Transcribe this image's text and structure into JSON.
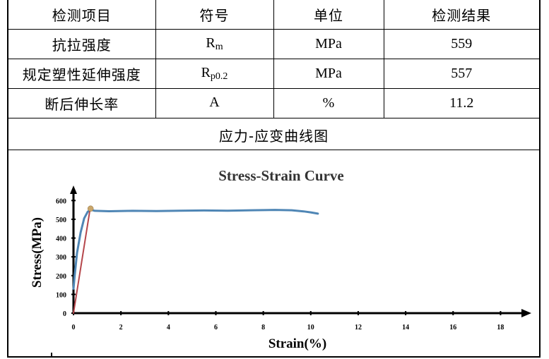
{
  "table": {
    "headers": [
      "检测项目",
      "符号",
      "单位",
      "检测结果"
    ],
    "rows": [
      {
        "item": "抗拉强度",
        "symbol_main": "R",
        "symbol_sub": "m",
        "unit": "MPa",
        "result": "559"
      },
      {
        "item": "规定塑性延伸强度",
        "symbol_main": "R",
        "symbol_sub": "p0.2",
        "unit": "MPa",
        "result": "557"
      },
      {
        "item": "断后伸长率",
        "symbol_main": "A",
        "symbol_sub": "",
        "unit": "%",
        "result": "11.2"
      }
    ]
  },
  "section_title": "应力-应变曲线图",
  "chart_data": {
    "type": "line",
    "title": "Stress-Strain Curve",
    "xlabel": "Strain(%)",
    "ylabel": "Stress(MPa)",
    "xlim": [
      0,
      19
    ],
    "ylim": [
      0,
      650
    ],
    "x_ticks": [
      0,
      2,
      4,
      6,
      8,
      10,
      12,
      14,
      16,
      18
    ],
    "y_ticks": [
      0,
      100,
      200,
      300,
      400,
      500,
      600
    ],
    "grid": false,
    "series": [
      {
        "color": "#4f86b5",
        "x": [
          0,
          0.05,
          0.15,
          0.3,
          0.45,
          0.6,
          0.7,
          0.75,
          0.9,
          1.5,
          2.5,
          3.5,
          4.5,
          5.5,
          6.5,
          7.5,
          8.5,
          9.2,
          9.7,
          10.0,
          10.3
        ],
        "y": [
          130,
          200,
          320,
          430,
          505,
          540,
          548,
          550,
          545,
          543,
          545,
          544,
          546,
          547,
          546,
          548,
          550,
          548,
          542,
          537,
          530
        ]
      },
      {
        "color": "#b5464b",
        "x": [
          0,
          0.7
        ],
        "y": [
          0,
          555
        ]
      }
    ],
    "marker": {
      "x": 0.72,
      "y": 557,
      "color": "#c9a66b"
    }
  }
}
